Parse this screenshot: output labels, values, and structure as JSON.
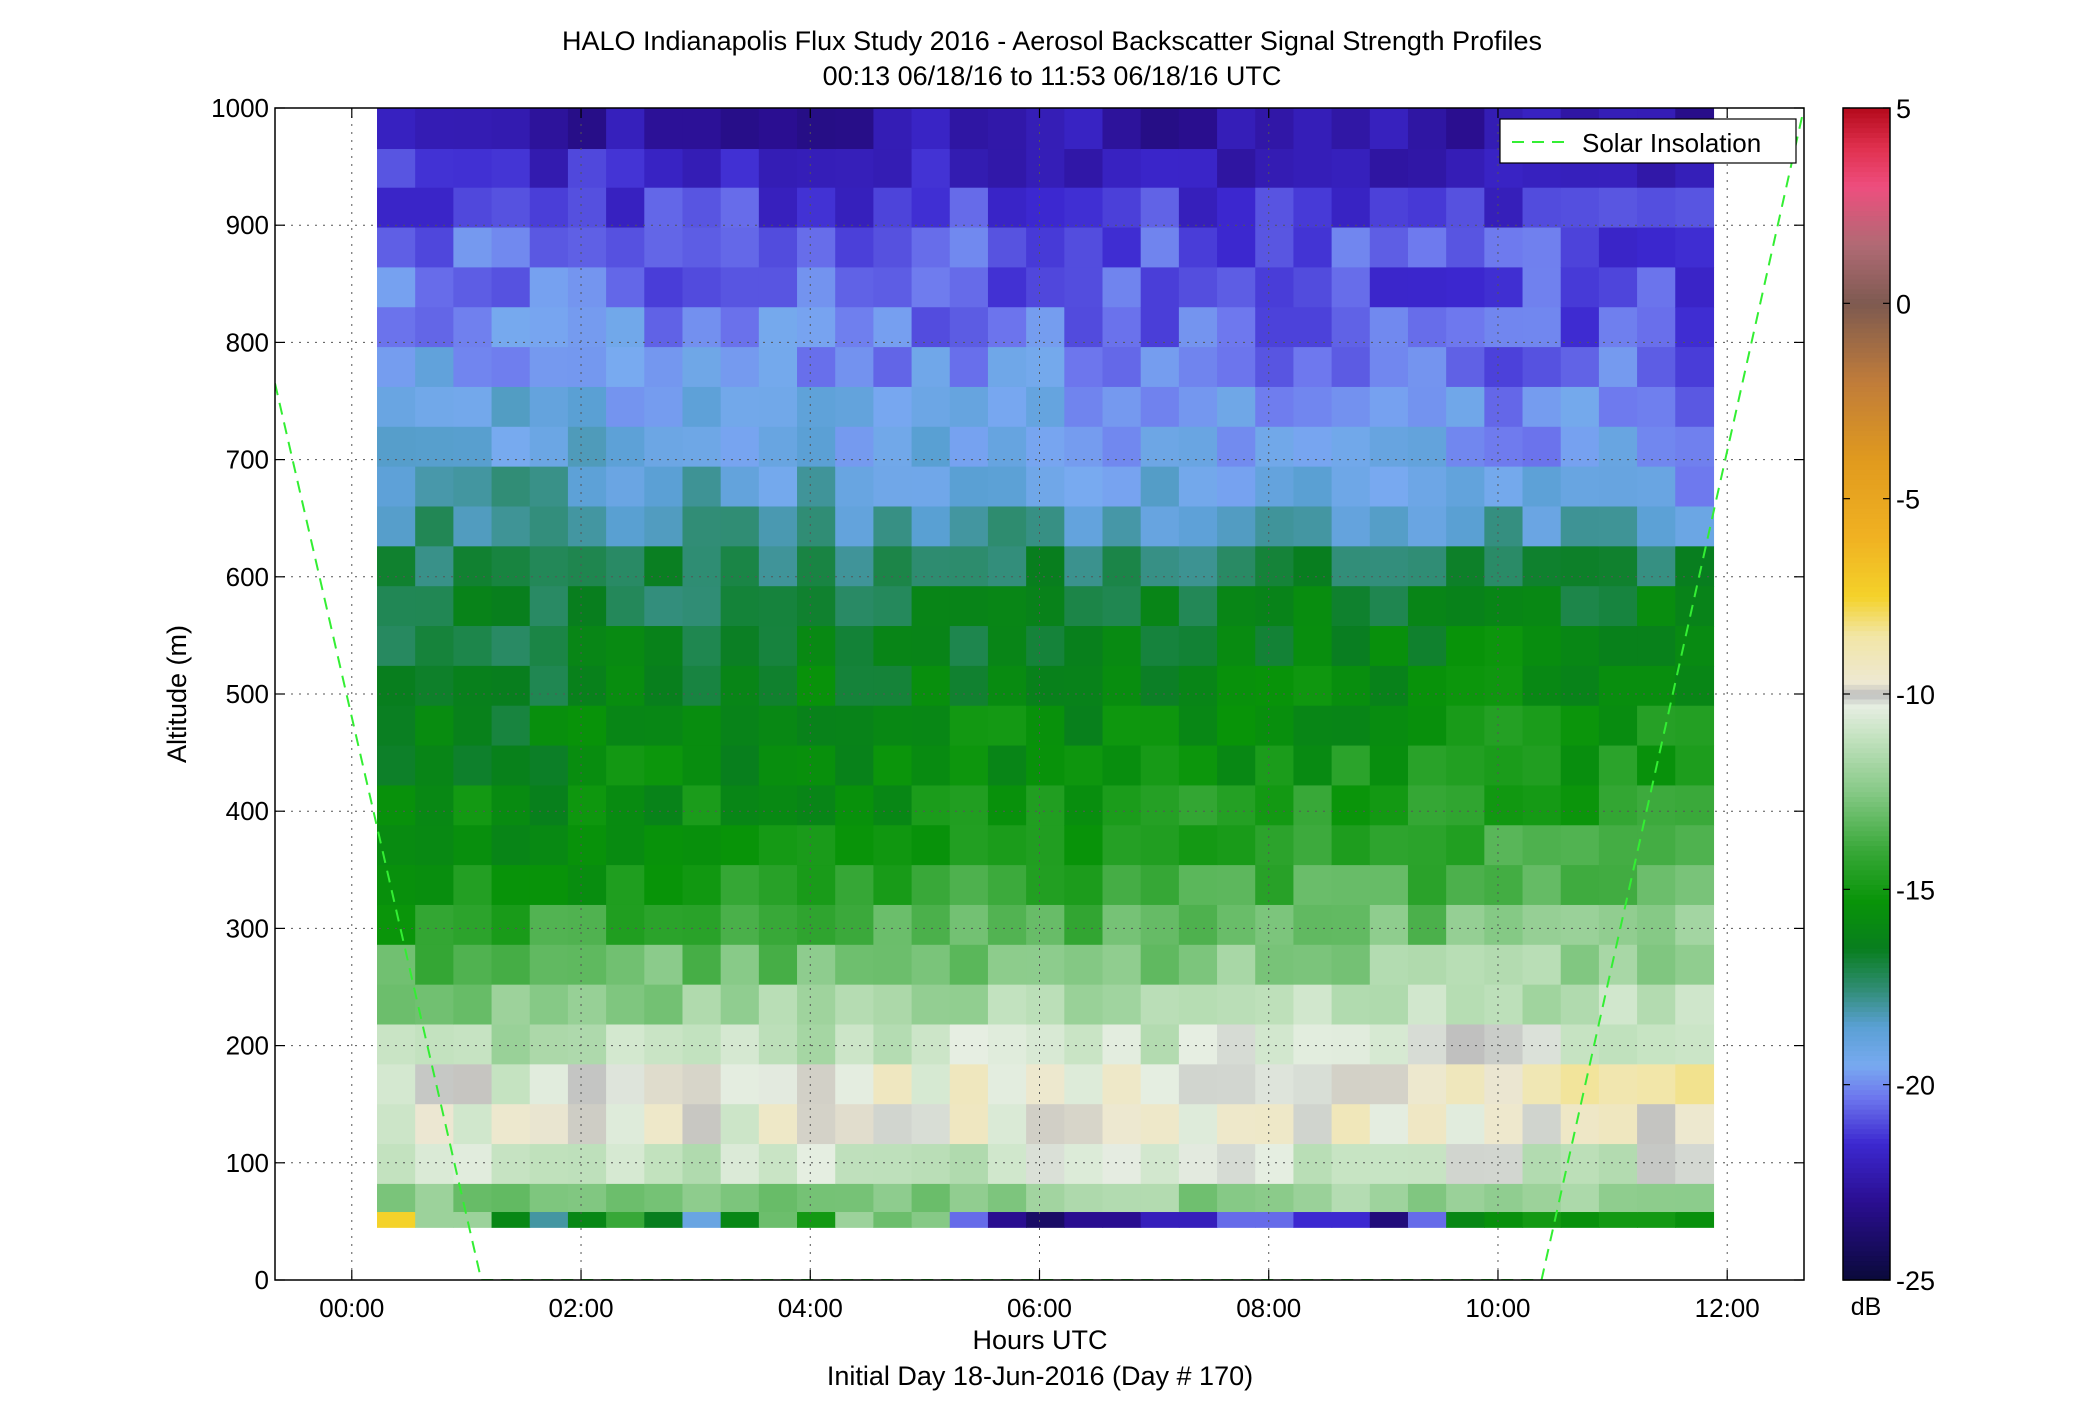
{
  "chart_data": {
    "type": "heatmap",
    "title": "HALO Indianapolis Flux Study 2016 - Aerosol Backscatter Signal Strength Profiles",
    "subtitle": "00:13 06/18/16 to 11:53 06/18/16  UTC",
    "xlabel": "Hours UTC",
    "xlabel2": "Initial Day 18-Jun-2016 (Day # 170)",
    "ylabel": "Altitude (m)",
    "xlim": [
      -0.67,
      12.67
    ],
    "ylim": [
      0,
      1000
    ],
    "x_ticks": [
      0,
      2,
      4,
      6,
      8,
      10,
      12
    ],
    "x_tick_labels": [
      "00:00",
      "02:00",
      "04:00",
      "06:00",
      "08:00",
      "10:00",
      "12:00"
    ],
    "y_ticks": [
      0,
      100,
      200,
      300,
      400,
      500,
      600,
      700,
      800,
      900,
      1000
    ],
    "y_tick_labels": [
      "0",
      "100",
      "200",
      "300",
      "400",
      "500",
      "600",
      "700",
      "800",
      "900",
      "1000"
    ],
    "grid": true,
    "legend": {
      "label": "Solar Insolation",
      "placement": "top-right",
      "color": "#33ee33"
    },
    "colorbar": {
      "ticks": [
        5,
        0,
        -5,
        -10,
        -15,
        -20,
        -25
      ],
      "tick_labels": [
        "5",
        "0",
        "-5",
        "-10",
        "-15",
        "-20",
        "-25"
      ],
      "range": [
        -25,
        5
      ],
      "unit_label": "dB",
      "stops": [
        [
          -25,
          "#0a0a3a"
        ],
        [
          -23,
          "#2a0e90"
        ],
        [
          -21.5,
          "#3c28d0"
        ],
        [
          -20.3,
          "#6e78ee"
        ],
        [
          -19.5,
          "#78aaf0"
        ],
        [
          -18.5,
          "#5aa0d4"
        ],
        [
          -17.5,
          "#2e8c70"
        ],
        [
          -16.5,
          "#087e1e"
        ],
        [
          -15.3,
          "#089408"
        ],
        [
          -14,
          "#38a838"
        ],
        [
          -12.5,
          "#86c986"
        ],
        [
          -11,
          "#c8e4c4"
        ],
        [
          -10.3,
          "#e6eee2"
        ],
        [
          -10,
          "#bebebe"
        ],
        [
          -9.7,
          "#ede8d2"
        ],
        [
          -8.5,
          "#f2e6a6"
        ],
        [
          -7.5,
          "#f4d22a"
        ],
        [
          -6,
          "#f0b222"
        ],
        [
          -4,
          "#e09a1e"
        ],
        [
          -2,
          "#c07c3a"
        ],
        [
          0,
          "#7e5a50"
        ],
        [
          1.5,
          "#b06a74"
        ],
        [
          3,
          "#ee4e7e"
        ],
        [
          4,
          "#e0304e"
        ],
        [
          5,
          "#b40a1c"
        ]
      ]
    },
    "time_range_hours": [
      0.22,
      11.88
    ],
    "altitude_range_m": [
      45,
      1000
    ],
    "solar_insolation_curve": {
      "x": [
        -0.67,
        1.13,
        10.38,
        12.67
      ],
      "y": [
        765,
        0,
        0,
        1000
      ]
    },
    "grid_values": {
      "description": "backscatter signal strength (dB) on a regular time x altitude grid; rows ordered from 1000 m down to 45 m",
      "rows_m": [
        1000,
        965,
        932,
        898,
        864,
        830,
        796,
        762,
        728,
        694,
        660,
        626,
        592,
        558,
        524,
        490,
        456,
        422,
        388,
        354,
        320,
        286,
        252,
        218,
        184,
        150,
        116,
        82,
        58
      ],
      "profile_start": [
        -22.5,
        -21.5,
        -21.0,
        -20.5,
        -20.3,
        -19.8,
        -19.5,
        -19.0,
        -18.6,
        -18.2,
        -17.8,
        -17.4,
        -17.0,
        -16.8,
        -16.5,
        -16.2,
        -16.0,
        -15.8,
        -15.5,
        -15.2,
        -14.5,
        -13.5,
        -12.5,
        -11.5,
        -10.6,
        -10.4,
        -11.2,
        -12.5,
        -13.0
      ],
      "profile_end": [
        -22.5,
        -22.0,
        -21.5,
        -21.0,
        -21.0,
        -20.8,
        -20.5,
        -20.2,
        -19.8,
        -19.5,
        -18.5,
        -17.0,
        -16.2,
        -15.8,
        -15.5,
        -15.2,
        -14.8,
        -14.3,
        -13.8,
        -13.2,
        -12.5,
        -11.8,
        -11.0,
        -10.4,
        -9.0,
        -9.5,
        -10.8,
        -12.0,
        -16.0
      ],
      "surface_row": [
        -7.5,
        -12.0,
        -12.0,
        -16.0,
        -18.0,
        -16.0,
        -14.0,
        -16.5,
        -19.0,
        -16.0,
        -13.0,
        -15.0,
        -12.0,
        -13.0,
        -12.5,
        -20.5,
        -23.0,
        -24.0,
        -23.0,
        -23.0,
        -22.0,
        -22.0,
        -20.5,
        -20.5,
        -21.5,
        -21.5,
        -23.5,
        -20.5,
        -16.0,
        -15.5,
        -15.0,
        -15.5,
        -15.0,
        -15.0,
        -15.5
      ]
    }
  }
}
